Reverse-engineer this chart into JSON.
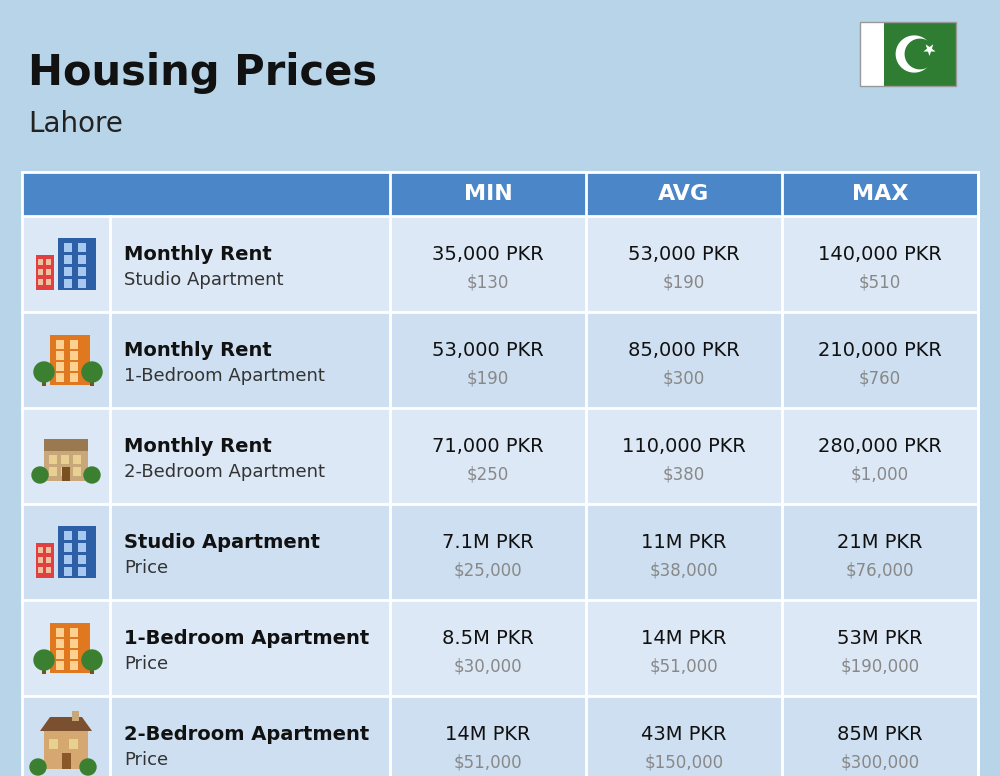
{
  "title": "Housing Prices",
  "subtitle": "Lahore",
  "background_color": "#b8d4e8",
  "header_bg_color": "#4a86c8",
  "header_text_color": "#ffffff",
  "row_bg_colors": [
    "#dce8f5",
    "#cddff0"
  ],
  "col_header_labels": [
    "MIN",
    "AVG",
    "MAX"
  ],
  "rows": [
    {
      "bold_label": "Monthly Rent",
      "sub_label": "Studio Apartment",
      "icon_type": "blue_red",
      "min_pkr": "35,000 PKR",
      "min_usd": "$130",
      "avg_pkr": "53,000 PKR",
      "avg_usd": "$190",
      "max_pkr": "140,000 PKR",
      "max_usd": "$510"
    },
    {
      "bold_label": "Monthly Rent",
      "sub_label": "1-Bedroom Apartment",
      "icon_type": "orange_green",
      "min_pkr": "53,000 PKR",
      "min_usd": "$190",
      "avg_pkr": "85,000 PKR",
      "avg_usd": "$300",
      "max_pkr": "210,000 PKR",
      "max_usd": "$760"
    },
    {
      "bold_label": "Monthly Rent",
      "sub_label": "2-Bedroom Apartment",
      "icon_type": "tan_house",
      "min_pkr": "71,000 PKR",
      "min_usd": "$250",
      "avg_pkr": "110,000 PKR",
      "avg_usd": "$380",
      "max_pkr": "280,000 PKR",
      "max_usd": "$1,000"
    },
    {
      "bold_label": "Studio Apartment",
      "sub_label": "Price",
      "icon_type": "blue_red",
      "min_pkr": "7.1M PKR",
      "min_usd": "$25,000",
      "avg_pkr": "11M PKR",
      "avg_usd": "$38,000",
      "max_pkr": "21M PKR",
      "max_usd": "$76,000"
    },
    {
      "bold_label": "1-Bedroom Apartment",
      "sub_label": "Price",
      "icon_type": "orange_green",
      "min_pkr": "8.5M PKR",
      "min_usd": "$30,000",
      "avg_pkr": "14M PKR",
      "avg_usd": "$51,000",
      "max_pkr": "53M PKR",
      "max_usd": "$190,000"
    },
    {
      "bold_label": "2-Bedroom Apartment",
      "sub_label": "Price",
      "icon_type": "brown_house",
      "min_pkr": "14M PKR",
      "min_usd": "$51,000",
      "avg_pkr": "43M PKR",
      "avg_usd": "$150,000",
      "max_pkr": "85M PKR",
      "max_usd": "$300,000"
    }
  ]
}
